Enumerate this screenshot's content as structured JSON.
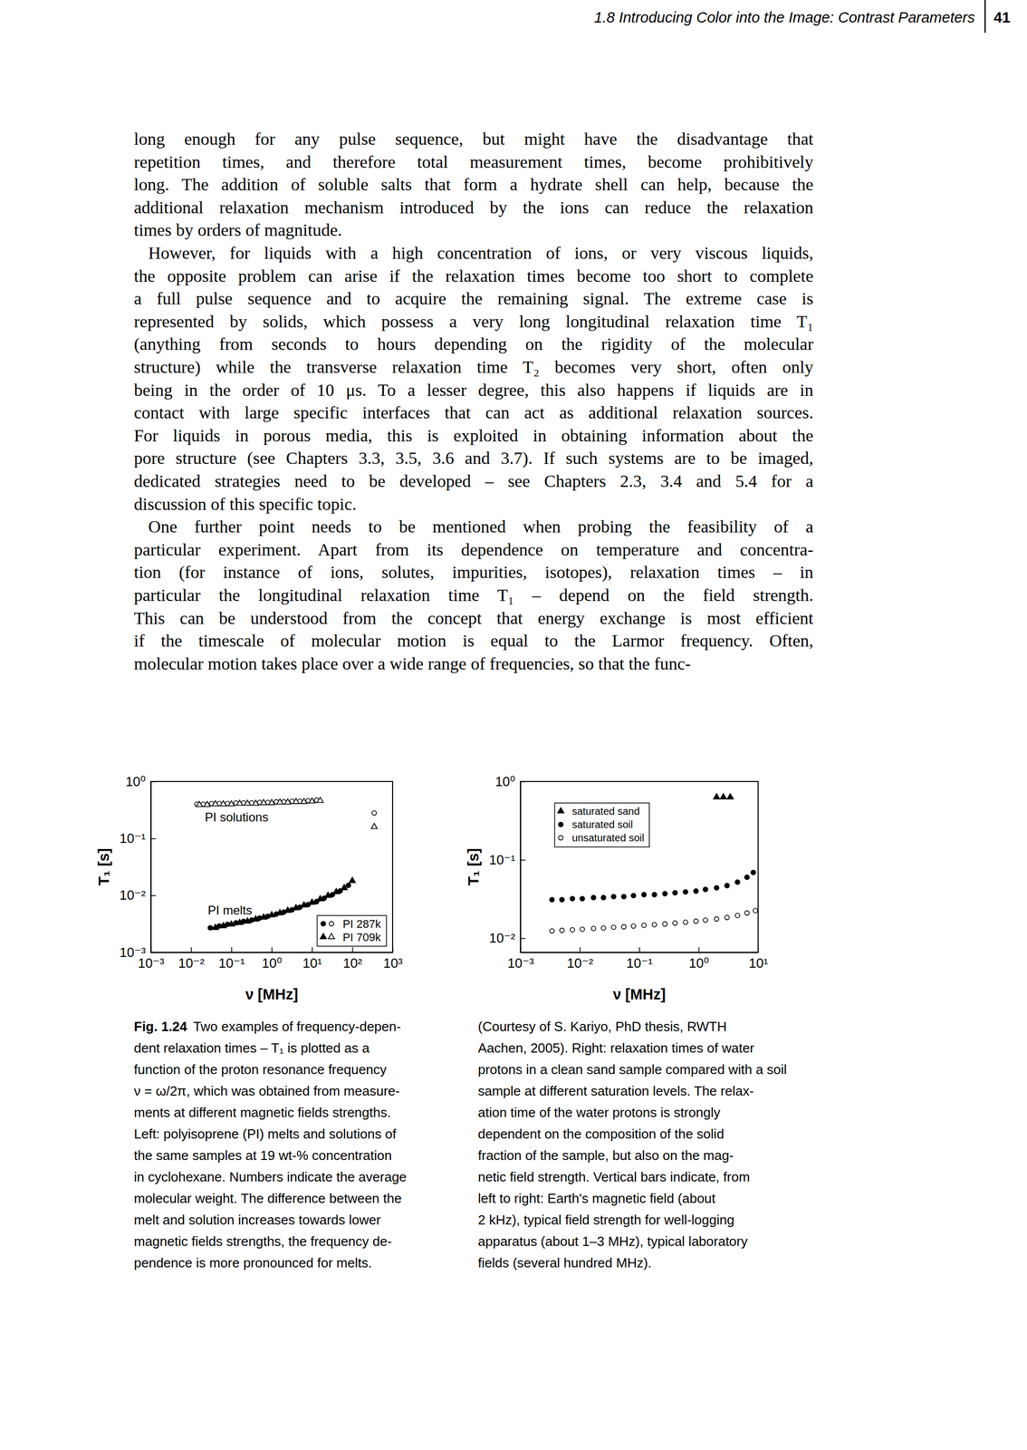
{
  "header": {
    "running_title": "1.8 Introducing Color into the Image: Contrast Parameters",
    "page_number": "41"
  },
  "body": {
    "paragraphs": [
      [
        "long enough for any pulse sequence, but might have the disadvantage that",
        "repetition times, and therefore total measurement times, become prohibitively",
        "long. The addition of soluble salts that form a hydrate shell can help, because the",
        "additional relaxation mechanism introduced by the ions can reduce the relaxation",
        "times by orders of magnitude."
      ],
      [
        "However, for liquids with a high concentration of ions, or very viscous liquids,",
        "the opposite problem can arise if the relaxation times become too short to complete",
        "a full pulse sequence and to acquire the remaining signal. The extreme case is",
        "represented by solids, which possess a very long longitudinal relaxation time T₁",
        "(anything from seconds to hours depending on the rigidity of the molecular",
        "structure) while the transverse relaxation time T₂ becomes very short, often only",
        "being in the order of 10 μs. To a lesser degree, this also happens if liquids are in",
        "contact with large specific interfaces that can act as additional relaxation sources.",
        "For liquids in porous media, this is exploited in obtaining information about the",
        "pore structure (see Chapters 3.3, 3.5, 3.6 and 3.7). If such systems are to be imaged,",
        "dedicated strategies need to be developed – see Chapters 2.3, 3.4 and 5.4 for a",
        "discussion of this specific topic."
      ],
      [
        "One further point needs to be mentioned when probing the feasibility of a",
        "particular experiment. Apart from its dependence on temperature and concentra-",
        "tion (for instance of ions, solutes, impurities, isotopes), relaxation times – in",
        "particular the longitudinal relaxation time T₁ – depend on the field strength.",
        "This can be understood from the concept that energy exchange is most efficient",
        "if the timescale of molecular motion is equal to the Larmor frequency. Often,",
        "molecular motion takes place over a wide range of frequencies, so that the func-"
      ]
    ]
  },
  "chart_data": [
    {
      "type": "scatter",
      "log": true,
      "grid": false,
      "legend": "bottom-right",
      "x_label": "ν [MHz]",
      "y_label": "T₁ [s]",
      "xlim": [
        0.001,
        1000
      ],
      "ylim": [
        0.001,
        1
      ],
      "xticks": [
        {
          "value": 0.001,
          "label": "10⁻³"
        },
        {
          "value": 0.01,
          "label": "10⁻²"
        },
        {
          "value": 0.1,
          "label": "10⁻¹"
        },
        {
          "value": 1,
          "label": "10⁰"
        },
        {
          "value": 10,
          "label": "10¹"
        },
        {
          "value": 100,
          "label": "10²"
        },
        {
          "value": 1000,
          "label": "10³"
        }
      ],
      "yticks": [
        {
          "value": 1,
          "label": "10⁰"
        },
        {
          "value": 0.1,
          "label": "10⁻¹"
        },
        {
          "value": 0.01,
          "label": "10⁻²"
        },
        {
          "value": 0.001,
          "label": "10⁻³"
        }
      ],
      "annotations": [
        {
          "text": "PI solutions",
          "x": 0.022,
          "y": 0.2
        },
        {
          "text": "PI melts",
          "x": 0.026,
          "y": 0.0046
        }
      ],
      "series": [
        {
          "name": "PI 287k",
          "marker": "filled-circle",
          "color": "#000000",
          "x": [
            0.03,
            0.05,
            0.08,
            0.13,
            0.2,
            0.32,
            0.5,
            0.8,
            1.3,
            2,
            3.2,
            5,
            8,
            13,
            20,
            32,
            50,
            80
          ],
          "values": [
            0.0027,
            0.0029,
            0.0031,
            0.0033,
            0.0035,
            0.0037,
            0.004,
            0.0043,
            0.0047,
            0.0051,
            0.0056,
            0.0062,
            0.0069,
            0.0078,
            0.0089,
            0.0103,
            0.012,
            0.015
          ]
        },
        {
          "name": "PI 287k",
          "marker": "open-circle",
          "color": "#000000",
          "x": [
            0.014,
            0.02,
            0.032,
            0.05,
            0.08,
            0.13,
            0.2,
            0.32,
            0.5,
            0.8,
            1.3,
            2,
            3.2,
            5,
            8,
            13,
            350
          ],
          "values": [
            0.4,
            0.4,
            0.41,
            0.41,
            0.41,
            0.42,
            0.42,
            0.42,
            0.43,
            0.43,
            0.44,
            0.44,
            0.45,
            0.45,
            0.46,
            0.47,
            0.28
          ]
        },
        {
          "name": "PI 709k",
          "marker": "filled-triangle",
          "color": "#000000",
          "x": [
            0.04,
            0.063,
            0.1,
            0.16,
            0.25,
            0.4,
            0.63,
            1,
            1.6,
            2.5,
            4,
            6.3,
            10,
            16,
            25,
            40,
            63,
            100
          ],
          "values": [
            0.0027,
            0.0029,
            0.0031,
            0.0033,
            0.0035,
            0.0038,
            0.0041,
            0.0045,
            0.0049,
            0.0054,
            0.006,
            0.0067,
            0.0075,
            0.0086,
            0.0099,
            0.0115,
            0.0135,
            0.018
          ]
        },
        {
          "name": "PI 709k",
          "marker": "open-triangle",
          "color": "#000000",
          "x": [
            0.016,
            0.025,
            0.04,
            0.063,
            0.1,
            0.16,
            0.25,
            0.4,
            0.63,
            1,
            1.6,
            2.5,
            4,
            6.3,
            10,
            16,
            350
          ],
          "values": [
            0.39,
            0.39,
            0.4,
            0.4,
            0.4,
            0.41,
            0.41,
            0.41,
            0.42,
            0.42,
            0.43,
            0.43,
            0.44,
            0.44,
            0.45,
            0.46,
            0.16
          ]
        }
      ]
    },
    {
      "type": "scatter",
      "log": true,
      "grid": false,
      "legend": "top-left",
      "x_label": "ν [MHz]",
      "y_label": "T₁ [s]",
      "xlim": [
        0.001,
        10
      ],
      "ylim": [
        0.0066,
        1
      ],
      "xticks": [
        {
          "value": 0.001,
          "label": "10⁻³"
        },
        {
          "value": 0.01,
          "label": "10⁻²"
        },
        {
          "value": 0.1,
          "label": "10⁻¹"
        },
        {
          "value": 1,
          "label": "10⁰"
        },
        {
          "value": 10,
          "label": "10¹"
        }
      ],
      "yticks": [
        {
          "value": 1,
          "label": "10⁰"
        },
        {
          "value": 0.1,
          "label": "10⁻¹"
        },
        {
          "value": 0.01,
          "label": "10⁻²"
        }
      ],
      "series": [
        {
          "name": "saturated sand",
          "marker": "filled-triangle",
          "color": "#000000",
          "x": [
            2,
            2.6,
            3.4
          ],
          "values": [
            0.63,
            0.63,
            0.63
          ]
        },
        {
          "name": "saturated soil",
          "marker": "filled-circle",
          "color": "#000000",
          "x": [
            0.0034,
            0.005,
            0.0075,
            0.011,
            0.017,
            0.025,
            0.037,
            0.055,
            0.08,
            0.12,
            0.18,
            0.27,
            0.4,
            0.6,
            0.9,
            1.3,
            2,
            3,
            4.5,
            6.5,
            8.3
          ],
          "values": [
            0.031,
            0.031,
            0.032,
            0.032,
            0.033,
            0.033,
            0.034,
            0.034,
            0.035,
            0.036,
            0.036,
            0.037,
            0.038,
            0.039,
            0.04,
            0.042,
            0.044,
            0.047,
            0.052,
            0.06,
            0.069
          ]
        },
        {
          "name": "unsaturated soil",
          "marker": "open-circle",
          "color": "#000000",
          "x": [
            0.0034,
            0.005,
            0.0075,
            0.011,
            0.017,
            0.025,
            0.037,
            0.055,
            0.08,
            0.12,
            0.18,
            0.27,
            0.4,
            0.6,
            0.9,
            1.3,
            2,
            3,
            4.5,
            6.5,
            9
          ],
          "values": [
            0.0124,
            0.0126,
            0.0128,
            0.013,
            0.0133,
            0.0135,
            0.0138,
            0.014,
            0.0143,
            0.0146,
            0.0149,
            0.0152,
            0.0156,
            0.016,
            0.0165,
            0.017,
            0.0176,
            0.0184,
            0.0195,
            0.021,
            0.0225
          ]
        }
      ]
    }
  ],
  "caption": {
    "label": "Fig. 1.24",
    "left_lines": [
      "Two examples of frequency-depen-",
      "dent relaxation times – T₁ is plotted as a",
      "function of the proton resonance frequency",
      "ν = ω/2π, which was obtained from measure-",
      "ments at different magnetic fields strengths.",
      "Left: polyisoprene (PI) melts and solutions of",
      "the same samples at 19 wt-% concentration",
      "in cyclohexane. Numbers indicate the average",
      "molecular weight. The difference between the",
      "melt and solution increases towards lower",
      "magnetic fields strengths, the frequency de-",
      "pendence is more pronounced for melts."
    ],
    "right_lines": [
      "(Courtesy of S. Kariyo, PhD thesis, RWTH",
      "Aachen, 2005). Right: relaxation times of water",
      "protons in a clean sand sample compared with a soil",
      "sample at different saturation levels. The relax-",
      "ation time of the water protons is strongly",
      "dependent on the composition of the solid",
      "fraction of the sample, but also on the mag-",
      "netic field strength. Vertical bars indicate, from",
      "left to right: Earth's magnetic field (about",
      "2 kHz), typical field strength for well-logging",
      "apparatus (about 1–3 MHz), typical laboratory",
      "fields (several hundred MHz)."
    ]
  }
}
